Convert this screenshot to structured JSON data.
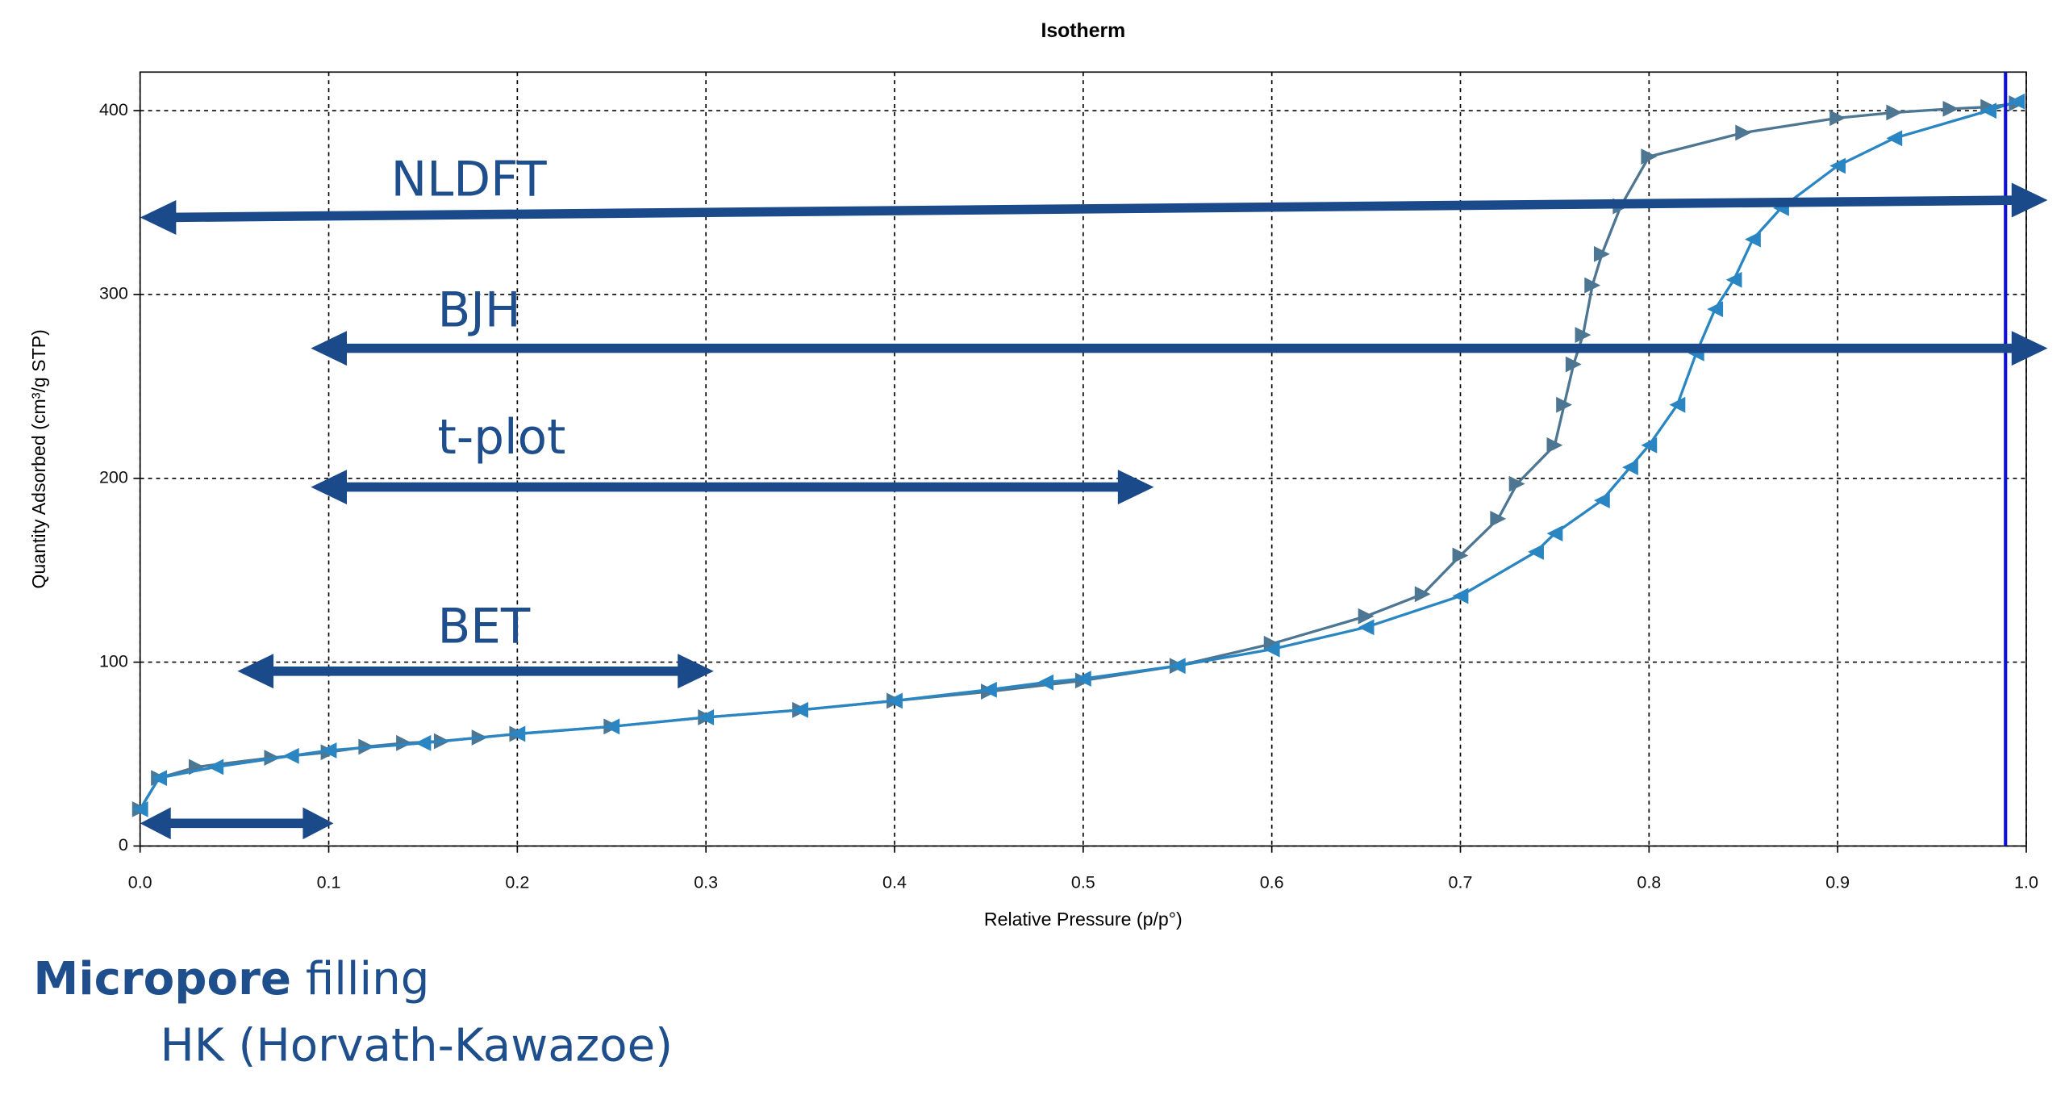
{
  "chart_data": {
    "type": "line",
    "title": "Isotherm",
    "x_label": "Relative Pressure (p/p°)",
    "y_label": "Quantity Adsorbed (cm³/g STP)",
    "xlim": [
      0,
      1
    ],
    "ylim": [
      0,
      421
    ],
    "xticks": [
      {
        "value": 0,
        "label": "0.0"
      },
      0.1,
      0.2,
      0.3,
      0.4,
      0.5,
      0.6,
      0.7,
      0.8,
      0.9,
      {
        "value": 1,
        "label": "1.0"
      }
    ],
    "yticks": [
      0,
      100,
      200,
      300,
      400
    ],
    "grid": true,
    "vline": {
      "x": 0.989,
      "color": "#1010d0"
    },
    "series": [
      {
        "color": "#4d7693",
        "marker": "triangle-right",
        "x": [
          0.0,
          0.01,
          0.03,
          0.07,
          0.1,
          0.12,
          0.14,
          0.16,
          0.18,
          0.2,
          0.25,
          0.3,
          0.35,
          0.4,
          0.45,
          0.5,
          0.55,
          0.6,
          0.65,
          0.68,
          0.7,
          0.72,
          0.73,
          0.75,
          0.755,
          0.76,
          0.765,
          0.77,
          0.775,
          0.785,
          0.8,
          0.85,
          0.9,
          0.93,
          0.96,
          0.98,
          0.995
        ],
        "values": [
          20,
          37,
          43,
          48,
          51,
          54,
          56,
          57,
          59,
          61,
          65,
          70,
          74,
          79,
          84,
          90,
          98,
          110,
          125,
          137,
          158,
          178,
          197,
          218,
          240,
          262,
          278,
          305,
          322,
          348,
          375,
          388,
          396,
          399,
          401,
          402,
          404
        ]
      },
      {
        "color": "#2a86c2",
        "marker": "triangle-left",
        "x": [
          0.995,
          0.98,
          0.93,
          0.9,
          0.87,
          0.855,
          0.845,
          0.835,
          0.825,
          0.815,
          0.8,
          0.79,
          0.775,
          0.75,
          0.74,
          0.7,
          0.65,
          0.6,
          0.55,
          0.5,
          0.48,
          0.45,
          0.4,
          0.35,
          0.3,
          0.25,
          0.2,
          0.15,
          0.1,
          0.08,
          0.04,
          0.01,
          0.0
        ],
        "values": [
          405,
          400,
          385,
          370,
          347,
          330,
          308,
          292,
          268,
          240,
          218,
          206,
          188,
          170,
          160,
          136,
          119,
          107,
          98,
          91,
          89,
          85,
          79,
          74,
          70,
          65,
          61,
          56,
          52,
          49,
          43,
          37,
          20
        ]
      }
    ],
    "annotations": [
      "NLDFT",
      "BJH",
      "t-plot",
      "BET"
    ]
  },
  "caption": {
    "bold": "Micropore",
    "rest": " filling",
    "method": "HK (Horvath-Kawazoe)"
  }
}
